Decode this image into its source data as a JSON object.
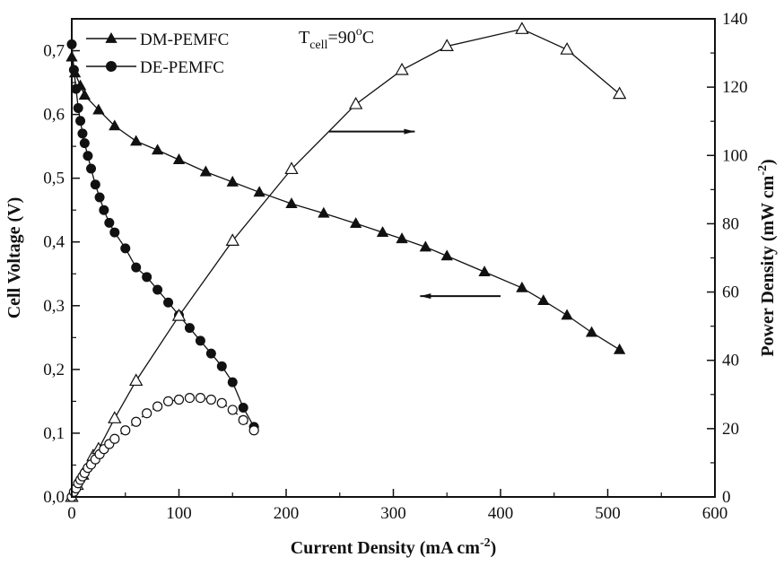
{
  "chart_data": {
    "type": "line",
    "xlabel_main": "Current Density (mA cm",
    "xlabel_exp": "-2",
    "xlabel_tail": ")",
    "ylabel_left": "Cell Voltage (V)",
    "ylabel_right_main": "Power Density (mW cm",
    "ylabel_right_exp": "-2",
    "ylabel_right_tail": ")",
    "annotation": {
      "base": "T",
      "sub": "cell",
      "mid": "=90",
      "sup": "o",
      "tail": "C"
    },
    "xlim": [
      0,
      600
    ],
    "ylim_left": [
      0,
      0.75
    ],
    "ylim_right": [
      0,
      140
    ],
    "x_ticks": [
      "0",
      "100",
      "200",
      "300",
      "400",
      "500",
      "600"
    ],
    "x_tick_values": [
      0,
      100,
      200,
      300,
      400,
      500,
      600
    ],
    "y_left_ticks": [
      "0,0",
      "0,1",
      "0,2",
      "0,3",
      "0,4",
      "0,5",
      "0,6",
      "0,7"
    ],
    "y_left_tick_values": [
      0,
      0.1,
      0.2,
      0.3,
      0.4,
      0.5,
      0.6,
      0.7
    ],
    "y_right_ticks": [
      "0",
      "20",
      "40",
      "60",
      "80",
      "100",
      "120",
      "140"
    ],
    "y_right_tick_values": [
      0,
      20,
      40,
      60,
      80,
      100,
      120,
      140
    ],
    "legend": {
      "placement": "top-left",
      "entries": [
        {
          "label": "DM-PEMFC",
          "marker": "triangle"
        },
        {
          "label": "DE-PEMFC",
          "marker": "circle"
        }
      ]
    },
    "series": [
      {
        "name": "DM-PEMFC",
        "axis": "left",
        "marker": "triangle-filled",
        "x": [
          0,
          3,
          8,
          12,
          25,
          40,
          60,
          80,
          100,
          125,
          150,
          175,
          205,
          235,
          265,
          290,
          308,
          330,
          350,
          385,
          420,
          440,
          462,
          485,
          511
        ],
        "y": [
          0.69,
          0.665,
          0.645,
          0.63,
          0.607,
          0.582,
          0.558,
          0.544,
          0.529,
          0.51,
          0.494,
          0.478,
          0.46,
          0.445,
          0.429,
          0.415,
          0.405,
          0.392,
          0.378,
          0.353,
          0.328,
          0.308,
          0.285,
          0.258,
          0.231
        ]
      },
      {
        "name": "DE-PEMFC",
        "axis": "left",
        "marker": "circle-filled",
        "x": [
          0,
          2,
          4,
          6,
          8,
          10,
          12,
          15,
          18,
          22,
          26,
          30,
          35,
          40,
          50,
          60,
          70,
          80,
          90,
          100,
          110,
          120,
          130,
          140,
          150,
          160,
          170
        ],
        "y": [
          0.71,
          0.67,
          0.64,
          0.61,
          0.59,
          0.57,
          0.555,
          0.535,
          0.515,
          0.49,
          0.47,
          0.45,
          0.43,
          0.415,
          0.39,
          0.36,
          0.345,
          0.325,
          0.305,
          0.285,
          0.265,
          0.245,
          0.225,
          0.205,
          0.18,
          0.14,
          0.11
        ]
      },
      {
        "name": "DM-PEMFC",
        "axis": "right",
        "marker": "triangle-open",
        "x": [
          0,
          5,
          10,
          20,
          25,
          40,
          60,
          100,
          150,
          205,
          265,
          308,
          350,
          420,
          462,
          511
        ],
        "y": [
          0,
          3.5,
          6.5,
          12,
          14,
          23,
          34,
          53,
          75,
          96,
          115,
          125,
          132,
          137,
          131,
          118
        ]
      },
      {
        "name": "DE-PEMFC",
        "axis": "right",
        "marker": "circle-open",
        "x": [
          0,
          2,
          4,
          6,
          8,
          10,
          12,
          15,
          18,
          22,
          26,
          30,
          35,
          40,
          50,
          60,
          70,
          80,
          90,
          100,
          110,
          120,
          130,
          140,
          150,
          160,
          170
        ],
        "y": [
          0,
          1.5,
          2.5,
          4,
          5,
          6,
          7,
          8.5,
          9.5,
          11,
          12.5,
          14,
          15.5,
          17,
          19.5,
          22,
          24.5,
          26.5,
          28,
          28.5,
          29,
          29,
          28.5,
          27.5,
          25.5,
          22.5,
          19.5
        ]
      }
    ],
    "arrows": [
      {
        "direction": "left-to-right",
        "axis": "right",
        "x1": 240,
        "x2": 320,
        "y": 107
      },
      {
        "direction": "right-to-left",
        "axis": "left",
        "x1": 325,
        "x2": 400,
        "y": 0.315
      }
    ]
  }
}
